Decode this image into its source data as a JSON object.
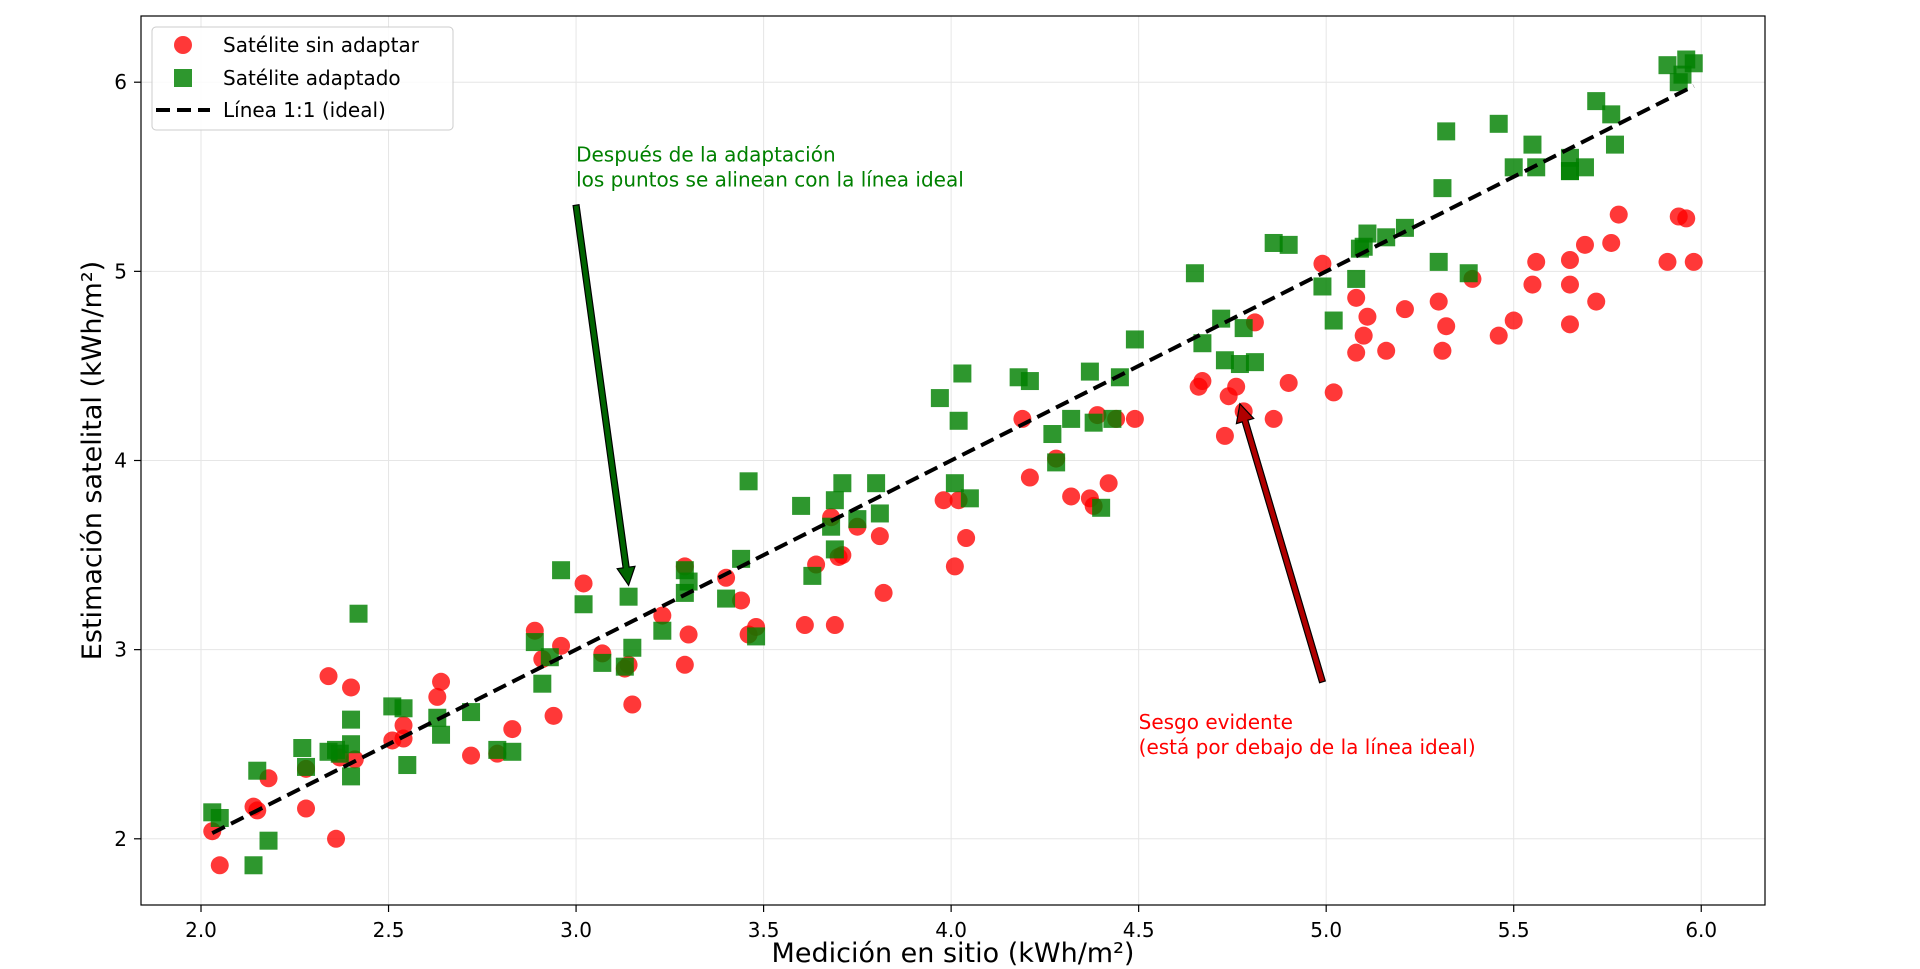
{
  "chart_data": {
    "type": "scatter",
    "title": "",
    "xlabel": "Medición en sitio (kWh/m²)",
    "ylabel": "Estimación satelital (kWh/m²)",
    "xlim": [
      1.84,
      6.17
    ],
    "ylim": [
      1.65,
      6.35
    ],
    "xticks": [
      2.0,
      2.5,
      3.0,
      3.5,
      4.0,
      4.5,
      5.0,
      5.5,
      6.0
    ],
    "xtick_labels": [
      "2.0",
      "2.5",
      "3.0",
      "3.5",
      "4.0",
      "4.5",
      "5.0",
      "5.5",
      "6.0"
    ],
    "yticks": [
      2,
      3,
      4,
      5,
      6
    ],
    "ytick_labels": [
      "2",
      "3",
      "4",
      "5",
      "6"
    ],
    "grid": true,
    "legend_position": "upper-left",
    "colors": {
      "raw": "#ff0000",
      "adapted": "#008000",
      "ideal": "#000000"
    },
    "series": [
      {
        "name": "Satélite sin adaptar",
        "marker": "circle",
        "points": [
          [
            2.03,
            2.04
          ],
          [
            2.05,
            1.86
          ],
          [
            2.14,
            2.17
          ],
          [
            2.15,
            2.15
          ],
          [
            2.18,
            2.32
          ],
          [
            2.28,
            2.16
          ],
          [
            2.28,
            2.37
          ],
          [
            2.34,
            2.86
          ],
          [
            2.36,
            2.0
          ],
          [
            2.37,
            2.43
          ],
          [
            2.4,
            2.8
          ],
          [
            2.41,
            2.42
          ],
          [
            2.51,
            2.52
          ],
          [
            2.54,
            2.53
          ],
          [
            2.54,
            2.6
          ],
          [
            2.63,
            2.75
          ],
          [
            2.64,
            2.83
          ],
          [
            2.72,
            2.44
          ],
          [
            2.79,
            2.45
          ],
          [
            2.83,
            2.58
          ],
          [
            2.89,
            3.1
          ],
          [
            2.91,
            2.95
          ],
          [
            2.94,
            2.65
          ],
          [
            2.96,
            3.02
          ],
          [
            3.02,
            3.35
          ],
          [
            3.07,
            2.98
          ],
          [
            3.13,
            2.9
          ],
          [
            3.14,
            2.92
          ],
          [
            3.15,
            2.71
          ],
          [
            3.23,
            3.18
          ],
          [
            3.29,
            2.92
          ],
          [
            3.29,
            3.44
          ],
          [
            3.3,
            3.08
          ],
          [
            3.4,
            3.38
          ],
          [
            3.44,
            3.26
          ],
          [
            3.46,
            3.08
          ],
          [
            3.48,
            3.12
          ],
          [
            3.61,
            3.13
          ],
          [
            3.64,
            3.45
          ],
          [
            3.68,
            3.7
          ],
          [
            3.69,
            3.13
          ],
          [
            3.7,
            3.49
          ],
          [
            3.71,
            3.5
          ],
          [
            3.75,
            3.65
          ],
          [
            3.81,
            3.6
          ],
          [
            3.82,
            3.3
          ],
          [
            3.98,
            3.79
          ],
          [
            4.01,
            3.44
          ],
          [
            4.02,
            3.79
          ],
          [
            4.04,
            3.59
          ],
          [
            4.19,
            4.22
          ],
          [
            4.21,
            3.91
          ],
          [
            4.28,
            4.01
          ],
          [
            4.32,
            3.81
          ],
          [
            4.37,
            3.8
          ],
          [
            4.38,
            3.76
          ],
          [
            4.39,
            4.24
          ],
          [
            4.42,
            3.88
          ],
          [
            4.44,
            4.22
          ],
          [
            4.49,
            4.22
          ],
          [
            4.66,
            4.39
          ],
          [
            4.67,
            4.42
          ],
          [
            4.73,
            4.13
          ],
          [
            4.74,
            4.34
          ],
          [
            4.76,
            4.39
          ],
          [
            4.78,
            4.26
          ],
          [
            4.81,
            4.73
          ],
          [
            4.86,
            4.22
          ],
          [
            4.9,
            4.41
          ],
          [
            4.99,
            5.04
          ],
          [
            5.02,
            4.36
          ],
          [
            5.08,
            4.57
          ],
          [
            5.08,
            4.86
          ],
          [
            5.1,
            4.66
          ],
          [
            5.11,
            4.76
          ],
          [
            5.16,
            4.58
          ],
          [
            5.21,
            4.8
          ],
          [
            5.3,
            4.84
          ],
          [
            5.31,
            4.58
          ],
          [
            5.32,
            4.71
          ],
          [
            5.39,
            4.96
          ],
          [
            5.46,
            4.66
          ],
          [
            5.5,
            4.74
          ],
          [
            5.55,
            4.93
          ],
          [
            5.56,
            5.05
          ],
          [
            5.65,
            5.06
          ],
          [
            5.65,
            4.93
          ],
          [
            5.65,
            4.72
          ],
          [
            5.69,
            5.14
          ],
          [
            5.72,
            4.84
          ],
          [
            5.76,
            5.15
          ],
          [
            5.78,
            5.3
          ],
          [
            5.91,
            5.05
          ],
          [
            5.94,
            5.29
          ],
          [
            5.96,
            5.28
          ],
          [
            5.98,
            5.05
          ]
        ]
      },
      {
        "name": "Satélite adaptado",
        "marker": "square",
        "points": [
          [
            2.03,
            2.14
          ],
          [
            2.05,
            2.11
          ],
          [
            2.14,
            1.86
          ],
          [
            2.15,
            2.36
          ],
          [
            2.18,
            1.99
          ],
          [
            2.27,
            2.48
          ],
          [
            2.28,
            2.38
          ],
          [
            2.34,
            2.46
          ],
          [
            2.36,
            2.47
          ],
          [
            2.37,
            2.45
          ],
          [
            2.4,
            2.33
          ],
          [
            2.4,
            2.5
          ],
          [
            2.4,
            2.63
          ],
          [
            2.42,
            3.19
          ],
          [
            2.51,
            2.7
          ],
          [
            2.54,
            2.69
          ],
          [
            2.55,
            2.39
          ],
          [
            2.63,
            2.64
          ],
          [
            2.64,
            2.55
          ],
          [
            2.72,
            2.67
          ],
          [
            2.79,
            2.47
          ],
          [
            2.83,
            2.46
          ],
          [
            2.89,
            3.04
          ],
          [
            2.91,
            2.82
          ],
          [
            2.93,
            2.96
          ],
          [
            2.96,
            3.42
          ],
          [
            3.02,
            3.24
          ],
          [
            3.07,
            2.93
          ],
          [
            3.13,
            2.91
          ],
          [
            3.14,
            3.28
          ],
          [
            3.15,
            3.01
          ],
          [
            3.23,
            3.1
          ],
          [
            3.29,
            3.3
          ],
          [
            3.29,
            3.42
          ],
          [
            3.3,
            3.36
          ],
          [
            3.4,
            3.27
          ],
          [
            3.44,
            3.48
          ],
          [
            3.46,
            3.89
          ],
          [
            3.48,
            3.07
          ],
          [
            3.6,
            3.76
          ],
          [
            3.63,
            3.39
          ],
          [
            3.68,
            3.65
          ],
          [
            3.69,
            3.79
          ],
          [
            3.69,
            3.53
          ],
          [
            3.71,
            3.88
          ],
          [
            3.75,
            3.69
          ],
          [
            3.8,
            3.88
          ],
          [
            3.81,
            3.72
          ],
          [
            3.97,
            4.33
          ],
          [
            4.01,
            3.88
          ],
          [
            4.02,
            4.21
          ],
          [
            4.03,
            4.46
          ],
          [
            4.05,
            3.8
          ],
          [
            4.18,
            4.44
          ],
          [
            4.21,
            4.42
          ],
          [
            4.27,
            4.14
          ],
          [
            4.28,
            3.99
          ],
          [
            4.32,
            4.22
          ],
          [
            4.37,
            4.47
          ],
          [
            4.38,
            4.2
          ],
          [
            4.4,
            3.75
          ],
          [
            4.43,
            4.22
          ],
          [
            4.45,
            4.44
          ],
          [
            4.49,
            4.64
          ],
          [
            4.65,
            4.99
          ],
          [
            4.67,
            4.62
          ],
          [
            4.72,
            4.75
          ],
          [
            4.73,
            4.53
          ],
          [
            4.77,
            4.51
          ],
          [
            4.78,
            4.7
          ],
          [
            4.81,
            4.52
          ],
          [
            4.86,
            5.15
          ],
          [
            4.9,
            5.14
          ],
          [
            4.99,
            4.92
          ],
          [
            5.02,
            4.74
          ],
          [
            5.08,
            4.96
          ],
          [
            5.09,
            5.12
          ],
          [
            5.1,
            5.13
          ],
          [
            5.11,
            5.2
          ],
          [
            5.16,
            5.18
          ],
          [
            5.21,
            5.23
          ],
          [
            5.3,
            5.05
          ],
          [
            5.31,
            5.44
          ],
          [
            5.32,
            5.74
          ],
          [
            5.38,
            4.99
          ],
          [
            5.46,
            5.78
          ],
          [
            5.5,
            5.55
          ],
          [
            5.55,
            5.67
          ],
          [
            5.56,
            5.55
          ],
          [
            5.65,
            5.53
          ],
          [
            5.65,
            5.6
          ],
          [
            5.65,
            5.53
          ],
          [
            5.69,
            5.55
          ],
          [
            5.72,
            5.9
          ],
          [
            5.76,
            5.83
          ],
          [
            5.77,
            5.67
          ],
          [
            5.91,
            6.09
          ],
          [
            5.94,
            6.0
          ],
          [
            5.95,
            6.04
          ],
          [
            5.96,
            6.12
          ],
          [
            5.98,
            6.1
          ]
        ]
      },
      {
        "name": "Línea 1:1 (ideal)",
        "marker": "dashed-line",
        "points": [
          [
            2.03,
            2.03
          ],
          [
            5.98,
            5.98
          ]
        ]
      }
    ],
    "annotations": [
      {
        "text_lines": [
          "Después de la adaptación",
          "los puntos se alinean con la línea ideal"
        ],
        "text_at": [
          3.0,
          5.58
        ],
        "arrow_to": [
          3.14,
          3.34
        ],
        "arrow_from": [
          3.0,
          5.35
        ],
        "color": "#008000",
        "arrow_fill": "#006400"
      },
      {
        "text_lines": [
          "Sesgo evidente",
          "(está por debajo de la línea ideal)"
        ],
        "text_at": [
          4.5,
          2.58
        ],
        "arrow_to": [
          4.77,
          4.3
        ],
        "arrow_from": [
          4.99,
          2.83
        ],
        "color": "#ff0000",
        "arrow_fill": "#b00000"
      }
    ]
  }
}
